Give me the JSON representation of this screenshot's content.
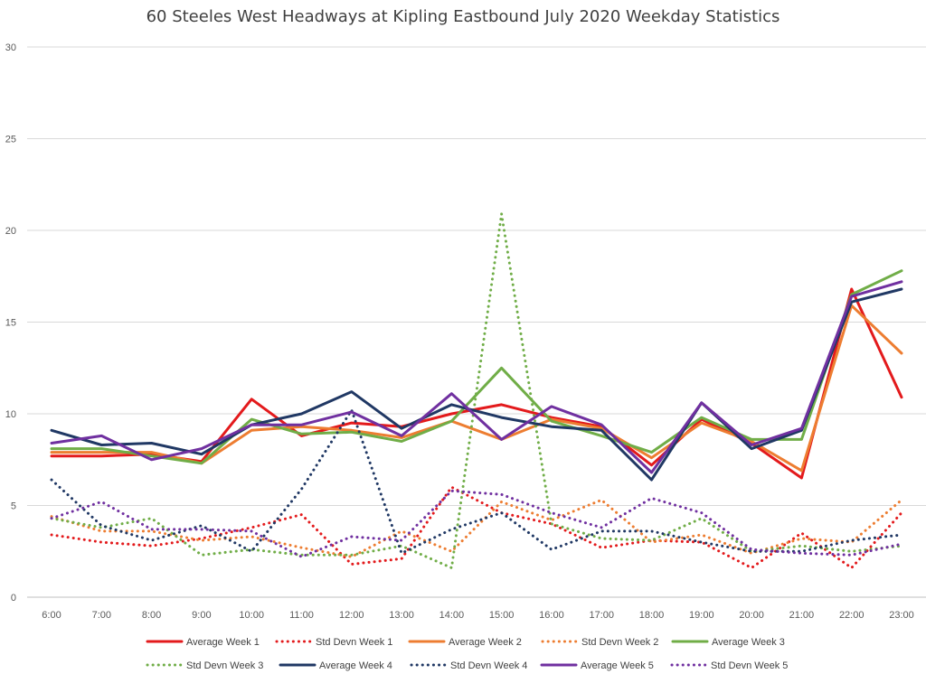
{
  "chart_data": {
    "type": "line",
    "title": "60 Steeles West Headways at Kipling Eastbound July 2020 Weekday Statistics",
    "xlabel": "",
    "ylabel": "",
    "ylim": [
      0,
      30
    ],
    "y_ticks": [
      0,
      5,
      10,
      15,
      20,
      25,
      30
    ],
    "grid": true,
    "legend_position": "bottom",
    "categories": [
      "6:00",
      "7:00",
      "8:00",
      "9:00",
      "10:00",
      "11:00",
      "12:00",
      "13:00",
      "14:00",
      "15:00",
      "16:00",
      "17:00",
      "18:00",
      "19:00",
      "20:00",
      "21:00",
      "22:00",
      "23:00"
    ],
    "series": [
      {
        "name": "Average Week 1",
        "color": "#e31a1c",
        "style": "solid",
        "values": [
          7.7,
          7.7,
          7.8,
          7.4,
          10.8,
          8.8,
          9.5,
          9.3,
          10.0,
          10.5,
          9.8,
          9.3,
          7.2,
          9.7,
          8.4,
          6.5,
          16.8,
          10.9
        ]
      },
      {
        "name": "Std Devn Week 1",
        "color": "#e31a1c",
        "style": "dotted",
        "values": [
          3.4,
          3.0,
          2.8,
          3.2,
          3.8,
          4.5,
          1.8,
          2.1,
          6.0,
          4.6,
          4.0,
          2.7,
          3.1,
          3.0,
          1.6,
          3.5,
          1.6,
          4.6
        ]
      },
      {
        "name": "Average Week 2",
        "color": "#ed7d31",
        "style": "solid",
        "values": [
          7.9,
          7.9,
          7.9,
          7.3,
          9.1,
          9.3,
          9.1,
          8.7,
          9.6,
          8.6,
          9.7,
          9.2,
          7.6,
          9.5,
          8.5,
          6.9,
          15.9,
          13.3
        ]
      },
      {
        "name": "Std Devn Week 2",
        "color": "#ed7d31",
        "style": "dotted",
        "values": [
          4.4,
          3.6,
          3.6,
          3.1,
          3.3,
          2.7,
          2.2,
          3.6,
          2.5,
          5.2,
          4.2,
          5.3,
          3.0,
          3.4,
          2.4,
          3.2,
          3.0,
          5.3
        ]
      },
      {
        "name": "Average Week 3",
        "color": "#70ad47",
        "style": "solid",
        "values": [
          8.1,
          8.1,
          7.7,
          7.3,
          9.7,
          8.9,
          9.0,
          8.5,
          9.6,
          12.5,
          9.6,
          8.8,
          7.9,
          9.8,
          8.6,
          8.6,
          16.5,
          17.8
        ]
      },
      {
        "name": "Std Devn Week 3",
        "color": "#70ad47",
        "style": "dotted",
        "values": [
          4.3,
          3.8,
          4.3,
          2.3,
          2.6,
          2.3,
          2.3,
          2.8,
          1.6,
          20.9,
          4.0,
          3.2,
          3.1,
          4.3,
          2.5,
          2.8,
          2.5,
          2.8
        ]
      },
      {
        "name": "Average Week 4",
        "color": "#203864",
        "style": "solid",
        "values": [
          9.1,
          8.3,
          8.4,
          7.8,
          9.4,
          10.0,
          11.2,
          9.2,
          10.5,
          9.8,
          9.3,
          9.1,
          6.4,
          10.6,
          8.1,
          9.1,
          16.1,
          16.8
        ]
      },
      {
        "name": "Std Devn Week 4",
        "color": "#203864",
        "style": "dotted",
        "values": [
          6.4,
          3.9,
          3.1,
          3.9,
          2.5,
          5.9,
          10.2,
          2.4,
          3.7,
          4.6,
          2.6,
          3.6,
          3.6,
          3.0,
          2.5,
          2.5,
          3.1,
          3.4
        ]
      },
      {
        "name": "Average Week 5",
        "color": "#7030a0",
        "style": "solid",
        "values": [
          8.4,
          8.8,
          7.5,
          8.1,
          9.4,
          9.4,
          10.1,
          8.8,
          11.1,
          8.6,
          10.4,
          9.4,
          6.8,
          10.6,
          8.3,
          9.2,
          16.4,
          17.2
        ]
      },
      {
        "name": "Std Devn Week 5",
        "color": "#7030a0",
        "style": "dotted",
        "values": [
          4.3,
          5.2,
          3.7,
          3.7,
          3.6,
          2.2,
          3.3,
          3.1,
          5.8,
          5.6,
          4.6,
          3.8,
          5.4,
          4.6,
          2.6,
          2.4,
          2.3,
          2.9
        ]
      }
    ]
  }
}
